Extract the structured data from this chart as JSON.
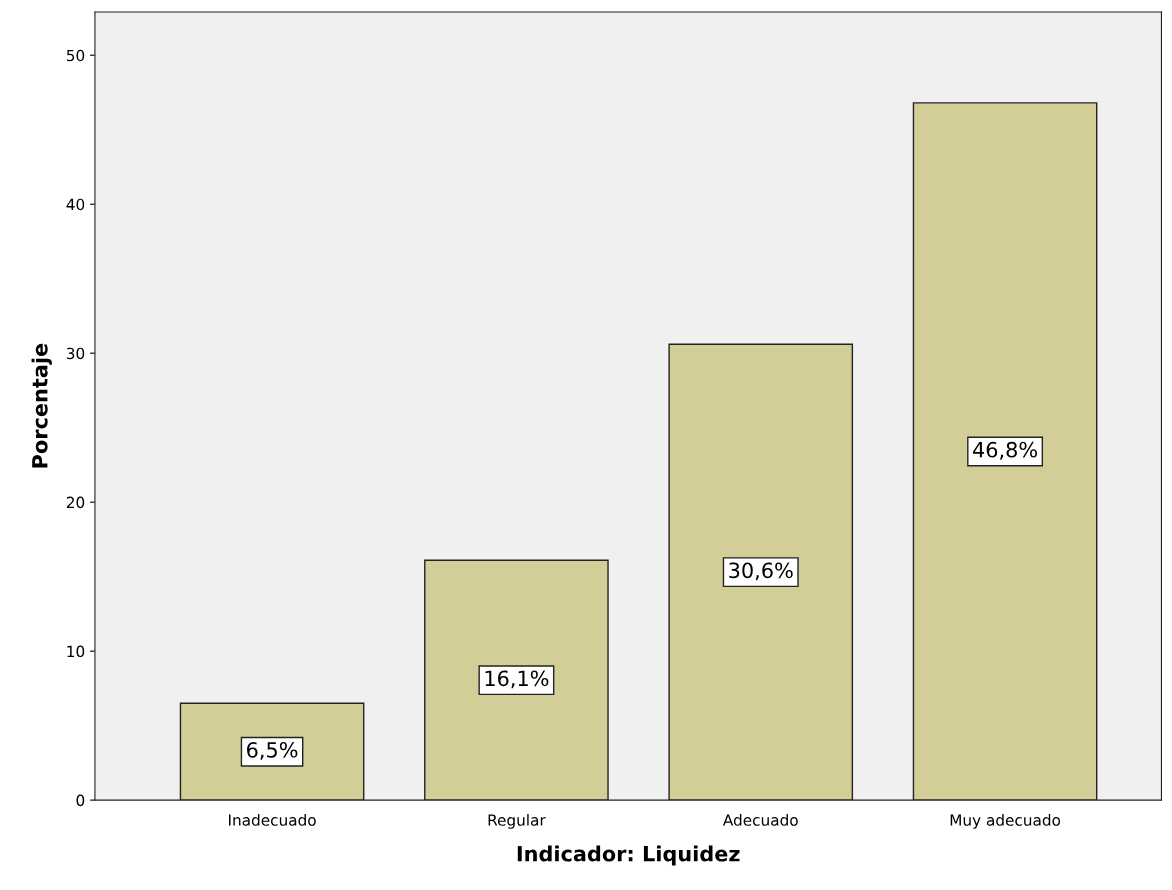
{
  "chart_data": {
    "type": "bar",
    "xlabel": "Indicador: Liquidez",
    "ylabel": "Porcentaje",
    "categories": [
      "Inadecuado",
      "Regular",
      "Adecuado",
      "Muy adecuado"
    ],
    "values": [
      6.5,
      16.1,
      30.6,
      46.8
    ],
    "value_labels": [
      "6,5%",
      "16,1%",
      "30,6%",
      "46,8%"
    ],
    "color": "#d3ce97",
    "ylim": [
      0,
      52.9
    ],
    "yticks": [
      0,
      10,
      20,
      30,
      40,
      50
    ],
    "grid": false,
    "legend": false
  }
}
